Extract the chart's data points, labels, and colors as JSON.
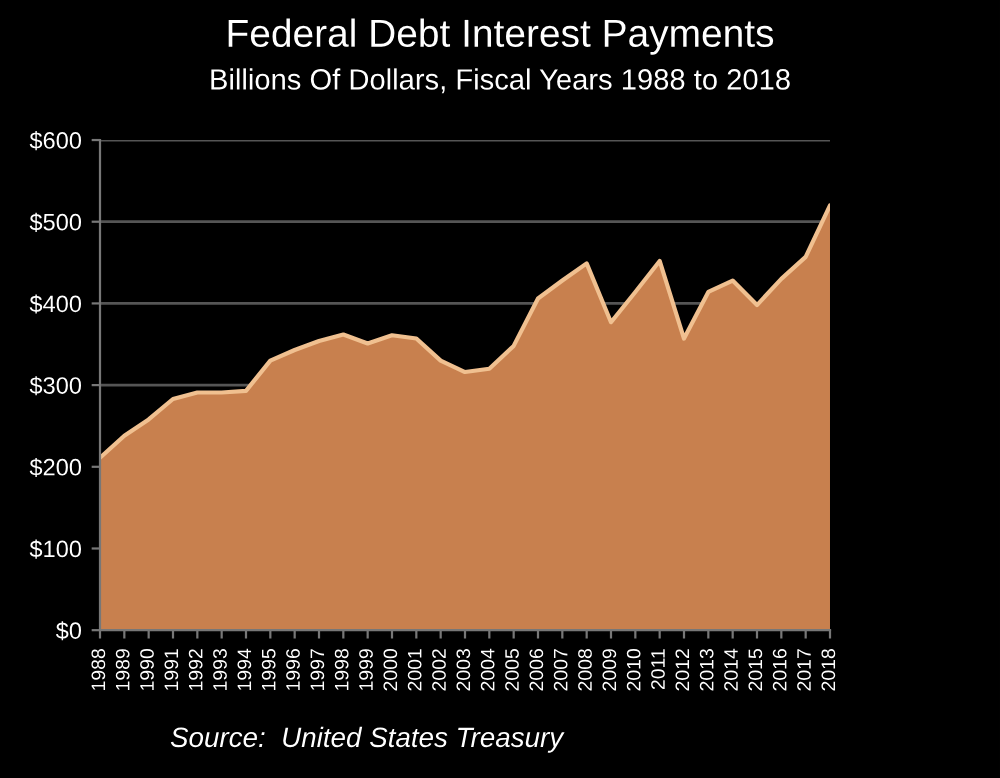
{
  "chart_data": {
    "type": "area",
    "title": "Federal Debt Interest Payments",
    "subtitle": "Billions Of Dollars, Fiscal Years 1988 to 2018",
    "categories": [
      "1988",
      "1989",
      "1990",
      "1991",
      "1992",
      "1993",
      "1994",
      "1995",
      "1996",
      "1997",
      "1998",
      "1999",
      "2000",
      "2001",
      "2002",
      "2003",
      "2004",
      "2005",
      "2006",
      "2007",
      "2008",
      "2009",
      "2010",
      "2011",
      "2012",
      "2013",
      "2014",
      "2015",
      "2016",
      "2017",
      "2018"
    ],
    "series": [
      {
        "color": "#c8804e",
        "values": [
          211,
          238,
          258,
          283,
          291,
          291,
          293,
          330,
          343,
          354,
          362,
          351,
          361,
          357,
          330,
          316,
          320,
          348,
          406,
          428,
          449,
          377,
          414,
          452,
          357,
          414,
          428,
          398,
          430,
          457,
          520
        ]
      }
    ],
    "ylim": [
      0,
      600
    ],
    "yticks": [
      {
        "value": 0,
        "label": "$0"
      },
      {
        "value": 100,
        "label": "$100"
      },
      {
        "value": 200,
        "label": "$200"
      },
      {
        "value": 300,
        "label": "$300"
      },
      {
        "value": 400,
        "label": "$400"
      },
      {
        "value": 500,
        "label": "$500"
      },
      {
        "value": 600,
        "label": "$600"
      }
    ],
    "grid": "y",
    "annotations": [
      "Source:  United States Treasury"
    ]
  }
}
